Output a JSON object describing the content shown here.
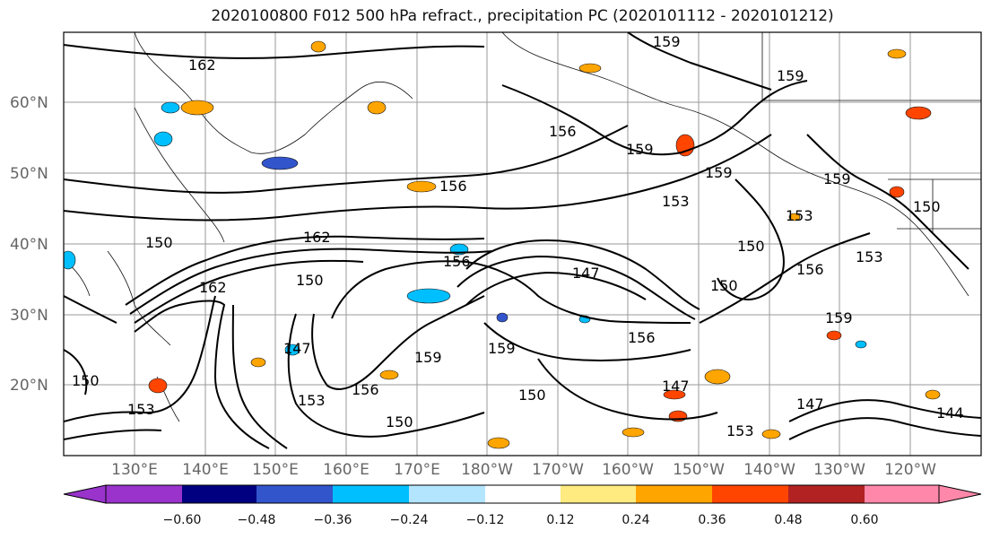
{
  "title": "2020100800 F012 500 hPa refract., precipitation PC (2020101112 - 2020101212)",
  "lat_labels": [
    "60°N",
    "50°N",
    "40°N",
    "30°N",
    "20°N"
  ],
  "lon_labels": [
    "130°E",
    "140°E",
    "150°E",
    "160°E",
    "170°E",
    "180°W",
    "170°W",
    "160°W",
    "150°W",
    "140°W",
    "130°W",
    "120°W"
  ],
  "contour_labels": [
    "162",
    "159",
    "159",
    "156",
    "159",
    "156",
    "153",
    "159",
    "159",
    "150",
    "150",
    "162",
    "156",
    "162",
    "150",
    "147",
    "150",
    "153",
    "153",
    "156",
    "147",
    "159",
    "159",
    "153",
    "150",
    "156",
    "150",
    "147",
    "153",
    "150",
    "159",
    "150",
    "147",
    "153",
    "156",
    "144"
  ],
  "colorbar": {
    "colors": [
      "#9933cc",
      "#000080",
      "#3355cc",
      "#00bfff",
      "#b3e5ff",
      "#ffffff",
      "#ffeb80",
      "#ffa500",
      "#ff4500",
      "#b22222",
      "#ff88aa"
    ],
    "tick_labels": [
      "−0.60",
      "−0.48",
      "−0.36",
      "−0.24",
      "−0.12",
      "0.12",
      "0.24",
      "0.36",
      "0.48",
      "0.60"
    ]
  }
}
